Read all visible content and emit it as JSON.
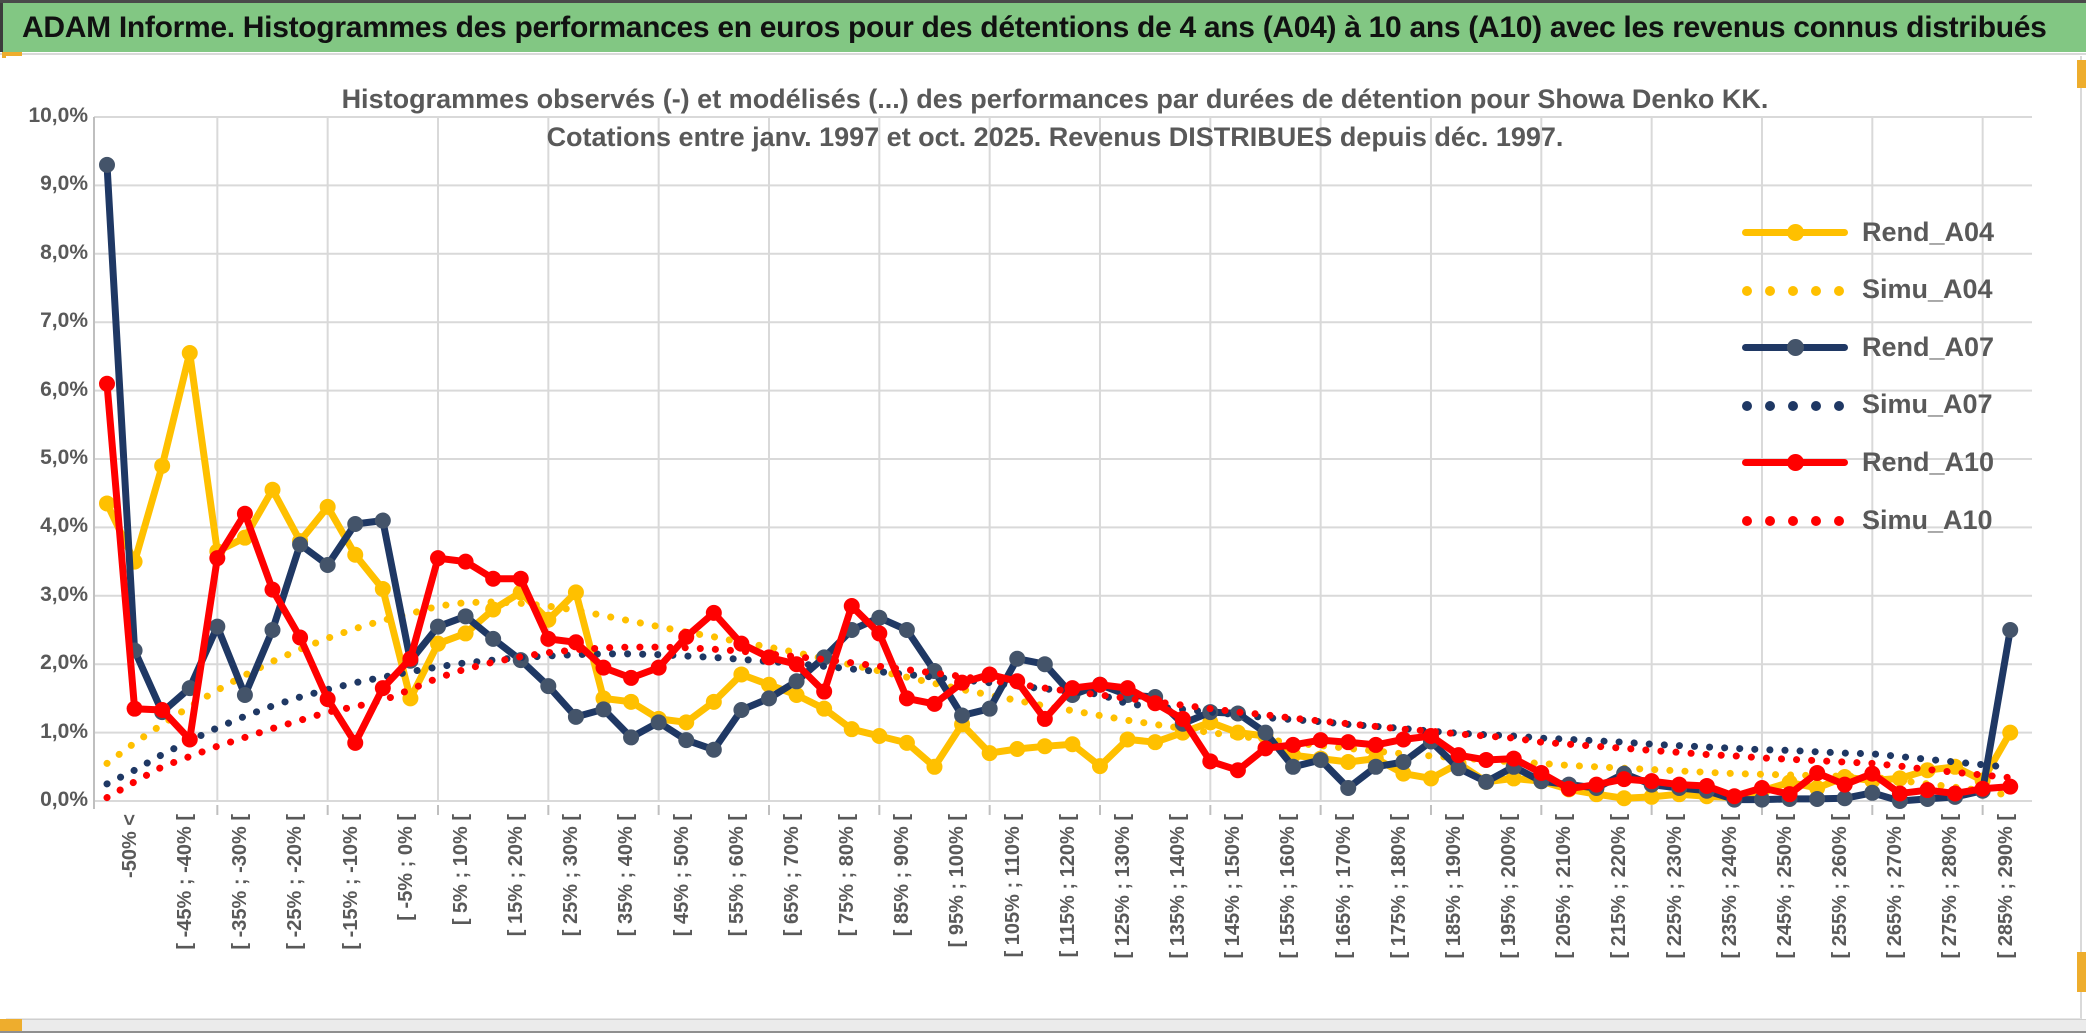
{
  "banner": {
    "title": "ADAM Informe. Histogrammes des performances en euros pour des détentions de 4 ans (A04) à 10 ans (A10) avec les revenus connus distribués"
  },
  "chart": {
    "title_line1": "Histogrammes observés (-) et modélisés (...) des performances par durées de détention pour Showa Denko KK.",
    "title_line2": "Cotations entre janv. 1997 et oct. 2025. Revenus DISTRIBUES depuis déc. 1997."
  },
  "colors": {
    "gold": "#FFC000",
    "navy": "#1F3864",
    "navy_marker": "#44546A",
    "red": "#FF0000",
    "grid": "#D9D9D9",
    "axis_line": "#BFBFBF",
    "axis_text": "#595959",
    "banner_green": "#82C783",
    "accent_gold": "#EEAD2D"
  },
  "chart_data": {
    "type": "line",
    "n_points": 70,
    "x_tick_interval": 2,
    "x_tick_labels": [
      "-50% <",
      "[ -45% ; -40% [",
      "[ -35% ; -30% [",
      "[ -25% ; -20% [",
      "[ -15% ; -10% [",
      "[ -5% ; 0% [",
      "[ 5% ; 10% [",
      "[ 15% ; 20% [",
      "[ 25% ; 30% [",
      "[ 35% ; 40% [",
      "[ 45% ; 50% [",
      "[ 55% ; 60% [",
      "[ 65% ; 70% [",
      "[ 75% ; 80% [",
      "[ 85% ; 90% [",
      "[ 95% ; 100% [",
      "[ 105% ; 110% [",
      "[ 115% ; 120% [",
      "[ 125% ; 130% [",
      "[ 135% ; 140% [",
      "[ 145% ; 150% [",
      "[ 155% ; 160% [",
      "[ 165% ; 170% [",
      "[ 175% ; 180% [",
      "[ 185% ; 190% [",
      "[ 195% ; 200% [",
      "[ 205% ; 210% [",
      "[ 215% ; 220% [",
      "[ 225% ; 230% [",
      "[ 235% ; 240% [",
      "[ 245% ; 250% [",
      "[ 255% ; 260% [",
      "[ 265% ; 270% [",
      "[ 275% ; 280% [",
      "[ 285% ; 290% ["
    ],
    "ylim": [
      0,
      10
    ],
    "ytick_labels": [
      "0,0%",
      "1,0%",
      "2,0%",
      "3,0%",
      "4,0%",
      "5,0%",
      "6,0%",
      "7,0%",
      "8,0%",
      "9,0%",
      "10,0%"
    ],
    "grid": true,
    "legend_position": "right-top",
    "series": [
      {
        "name": "Rend_A04",
        "style": "solid",
        "color": "gold",
        "values": [
          4.35,
          3.5,
          4.9,
          6.55,
          3.65,
          3.85,
          4.55,
          3.8,
          4.3,
          3.6,
          3.1,
          1.5,
          2.3,
          2.45,
          2.8,
          3.05,
          2.65,
          3.05,
          1.5,
          1.45,
          1.2,
          1.15,
          1.45,
          1.85,
          1.7,
          1.55,
          1.35,
          1.05,
          0.95,
          0.85,
          0.5,
          1.12,
          0.7,
          0.76,
          0.8,
          0.83,
          0.51,
          0.9,
          0.86,
          1.0,
          1.15,
          1.0,
          0.95,
          0.67,
          0.62,
          0.57,
          0.62,
          0.4,
          0.33,
          0.55,
          0.28,
          0.33,
          0.29,
          0.17,
          0.1,
          0.04,
          0.06,
          0.1,
          0.07,
          0.05,
          0.15,
          0.27,
          0.19,
          0.35,
          0.3,
          0.33,
          0.45,
          0.5,
          0.3,
          1.0
        ]
      },
      {
        "name": "Simu_A04",
        "style": "dotted",
        "color": "gold",
        "values": [
          0.55,
          0.85,
          1.12,
          1.38,
          1.62,
          1.84,
          2.04,
          2.22,
          2.38,
          2.52,
          2.64,
          2.74,
          2.85,
          2.9,
          2.91,
          2.89,
          2.85,
          2.79,
          2.71,
          2.63,
          2.55,
          2.47,
          2.4,
          2.32,
          2.25,
          2.17,
          2.08,
          1.99,
          1.9,
          1.81,
          1.72,
          1.63,
          1.55,
          1.47,
          1.39,
          1.32,
          1.25,
          1.18,
          1.12,
          1.06,
          1.0,
          0.95,
          0.9,
          0.85,
          0.81,
          0.77,
          0.73,
          0.69,
          0.66,
          0.63,
          0.6,
          0.57,
          0.55,
          0.52,
          0.5,
          0.48,
          0.46,
          0.44,
          0.42,
          0.4,
          0.39,
          0.38,
          0.37,
          0.36,
          0.35,
          0.3,
          0.25,
          0.2,
          0.15,
          0.08
        ]
      },
      {
        "name": "Rend_A07",
        "style": "solid",
        "color": "navy",
        "values": [
          9.3,
          2.2,
          1.3,
          1.65,
          2.55,
          1.55,
          2.5,
          3.75,
          3.45,
          4.05,
          4.1,
          2.05,
          2.55,
          2.7,
          2.37,
          2.06,
          1.68,
          1.23,
          1.34,
          0.93,
          1.15,
          0.89,
          0.75,
          1.33,
          1.5,
          1.75,
          2.1,
          2.5,
          2.68,
          2.5,
          1.9,
          1.25,
          1.35,
          2.08,
          2.0,
          1.55,
          1.7,
          1.55,
          1.52,
          1.13,
          1.3,
          1.28,
          1.0,
          0.5,
          0.6,
          0.19,
          0.5,
          0.57,
          0.87,
          0.48,
          0.28,
          0.5,
          0.29,
          0.24,
          0.19,
          0.4,
          0.24,
          0.19,
          0.15,
          0.02,
          0.02,
          0.03,
          0.03,
          0.04,
          0.12,
          0.0,
          0.03,
          0.06,
          0.15,
          2.5
        ]
      },
      {
        "name": "Simu_A07",
        "style": "dotted",
        "color": "navy",
        "values": [
          0.25,
          0.45,
          0.68,
          0.88,
          1.07,
          1.24,
          1.39,
          1.52,
          1.63,
          1.73,
          1.81,
          1.89,
          1.96,
          2.02,
          2.06,
          2.1,
          2.12,
          2.14,
          2.15,
          2.15,
          2.14,
          2.12,
          2.1,
          2.07,
          2.04,
          2.01,
          1.97,
          1.93,
          1.89,
          1.85,
          1.81,
          1.77,
          1.73,
          1.68,
          1.64,
          1.6,
          1.56,
          1.42,
          1.38,
          1.34,
          1.3,
          1.26,
          1.22,
          1.19,
          1.16,
          1.12,
          1.09,
          1.06,
          1.02,
          0.99,
          0.97,
          0.95,
          0.92,
          0.9,
          0.88,
          0.86,
          0.83,
          0.81,
          0.79,
          0.77,
          0.75,
          0.74,
          0.72,
          0.7,
          0.69,
          0.65,
          0.61,
          0.57,
          0.53,
          0.49
        ]
      },
      {
        "name": "Rend_A10",
        "style": "solid",
        "color": "red",
        "values": [
          6.1,
          1.35,
          1.33,
          0.9,
          3.55,
          4.2,
          3.09,
          2.39,
          1.49,
          0.85,
          1.65,
          2.08,
          3.55,
          3.5,
          3.25,
          3.25,
          2.37,
          2.32,
          1.95,
          1.8,
          1.95,
          2.4,
          2.75,
          2.3,
          2.1,
          2.0,
          1.6,
          2.85,
          2.45,
          1.5,
          1.42,
          1.73,
          1.85,
          1.75,
          1.2,
          1.65,
          1.7,
          1.65,
          1.43,
          1.2,
          0.58,
          0.45,
          0.77,
          0.82,
          0.89,
          0.86,
          0.82,
          0.9,
          0.95,
          0.67,
          0.6,
          0.62,
          0.41,
          0.18,
          0.24,
          0.32,
          0.29,
          0.24,
          0.22,
          0.07,
          0.19,
          0.1,
          0.41,
          0.24,
          0.4,
          0.11,
          0.16,
          0.11,
          0.18,
          0.21
        ]
      },
      {
        "name": "Simu_A10",
        "style": "dotted",
        "color": "red",
        "values": [
          0.05,
          0.28,
          0.5,
          0.65,
          0.8,
          0.93,
          1.06,
          1.18,
          1.3,
          1.38,
          1.47,
          1.63,
          1.8,
          1.93,
          2.03,
          2.11,
          2.17,
          2.21,
          2.24,
          2.25,
          2.25,
          2.24,
          2.22,
          2.19,
          2.15,
          2.11,
          2.07,
          2.02,
          1.97,
          1.92,
          1.87,
          1.82,
          1.76,
          1.71,
          1.65,
          1.6,
          1.55,
          1.5,
          1.45,
          1.4,
          1.35,
          1.3,
          1.26,
          1.21,
          1.17,
          1.13,
          1.09,
          1.05,
          1.02,
          0.98,
          0.95,
          0.92,
          0.86,
          0.83,
          0.8,
          0.77,
          0.74,
          0.71,
          0.68,
          0.66,
          0.63,
          0.61,
          0.59,
          0.57,
          0.55,
          0.51,
          0.46,
          0.42,
          0.38,
          0.34
        ]
      }
    ]
  }
}
